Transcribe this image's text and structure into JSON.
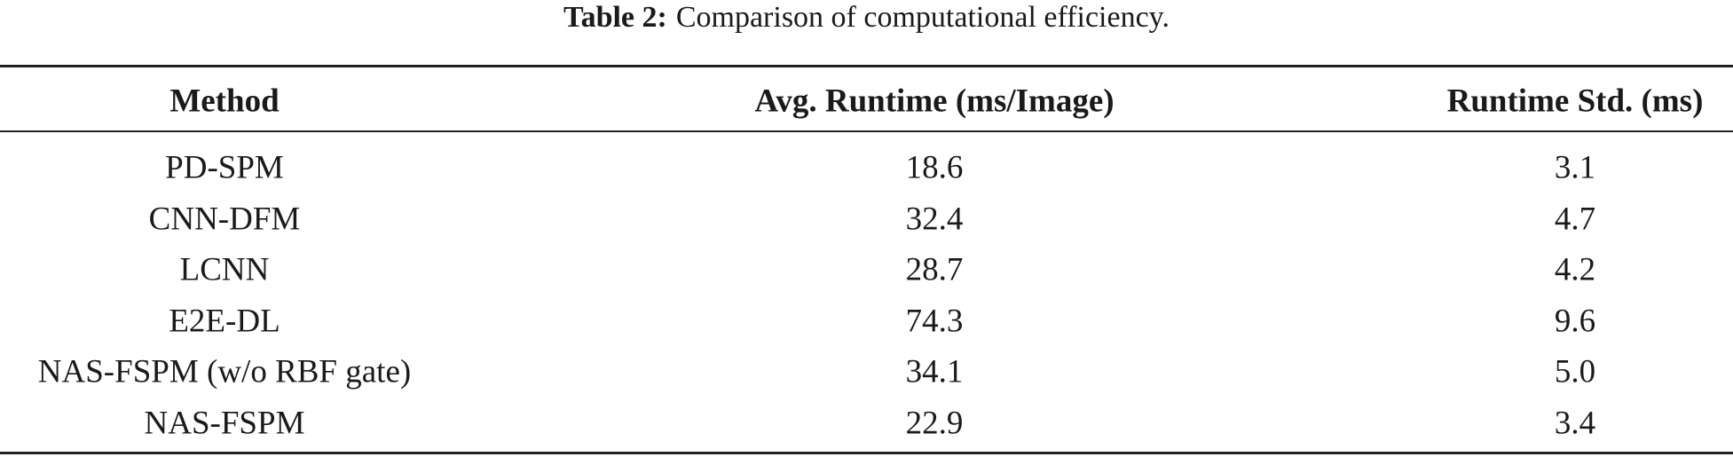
{
  "caption": {
    "label": "Table 2:",
    "text": "Comparison of computational efficiency."
  },
  "table": {
    "header": [
      "Method",
      "Avg. Runtime (ms/Image)",
      "Runtime Std. (ms)"
    ],
    "rows": [
      [
        "PD-SPM",
        "18.6",
        "3.1"
      ],
      [
        "CNN-DFM",
        "32.4",
        "4.7"
      ],
      [
        "LCNN",
        "28.7",
        "4.2"
      ],
      [
        "E2E-DL",
        "74.3",
        "9.6"
      ],
      [
        "NAS-FSPM (w/o RBF gate)",
        "34.1",
        "5.0"
      ],
      [
        "NAS-FSPM",
        "22.9",
        "3.4"
      ]
    ]
  }
}
